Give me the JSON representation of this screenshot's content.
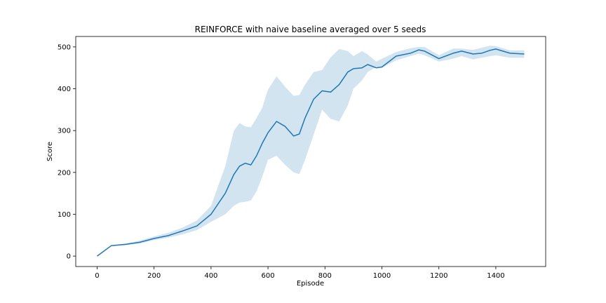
{
  "chart_data": {
    "type": "line",
    "title": "REINFORCE with naive baseline averaged over 5 seeds",
    "xlabel": "Episode",
    "ylabel": "Score",
    "xlim": [
      -75,
      1575
    ],
    "ylim": [
      -25,
      525
    ],
    "xticks": [
      0,
      200,
      400,
      600,
      800,
      1000,
      1200,
      1400
    ],
    "yticks": [
      0,
      100,
      200,
      300,
      400,
      500
    ],
    "grid": false,
    "colors": {
      "line": "#1f77b4",
      "band": "#1f77b4"
    },
    "series": [
      {
        "x": [
          0,
          50,
          100,
          150,
          200,
          250,
          300,
          350,
          400,
          450,
          480,
          500,
          520,
          540,
          560,
          580,
          600,
          630,
          660,
          690,
          710,
          730,
          760,
          790,
          820,
          850,
          880,
          900,
          930,
          950,
          980,
          1000,
          1050,
          1100,
          1130,
          1150,
          1200,
          1250,
          1280,
          1320,
          1350,
          1380,
          1400,
          1450,
          1500
        ],
        "y": [
          0,
          25,
          28,
          33,
          42,
          49,
          60,
          72,
          100,
          150,
          195,
          215,
          222,
          218,
          240,
          270,
          295,
          322,
          310,
          287,
          292,
          330,
          375,
          395,
          392,
          410,
          440,
          448,
          450,
          458,
          450,
          452,
          478,
          485,
          493,
          490,
          472,
          485,
          490,
          483,
          485,
          492,
          495,
          485,
          483
        ],
        "lower": [
          0,
          24,
          26,
          30,
          38,
          44,
          52,
          62,
          82,
          100,
          120,
          128,
          130,
          133,
          155,
          190,
          230,
          240,
          218,
          200,
          196,
          230,
          290,
          350,
          328,
          322,
          360,
          400,
          420,
          440,
          452,
          450,
          468,
          478,
          484,
          480,
          465,
          472,
          478,
          470,
          474,
          478,
          480,
          474,
          474
        ],
        "upper": [
          0,
          26,
          30,
          37,
          47,
          56,
          68,
          85,
          120,
          215,
          300,
          318,
          310,
          308,
          330,
          355,
          398,
          430,
          405,
          383,
          385,
          410,
          440,
          445,
          475,
          495,
          490,
          478,
          490,
          482,
          465,
          472,
          488,
          497,
          500,
          500,
          480,
          496,
          496,
          493,
          498,
          503,
          502,
          492,
          492
        ]
      }
    ]
  }
}
